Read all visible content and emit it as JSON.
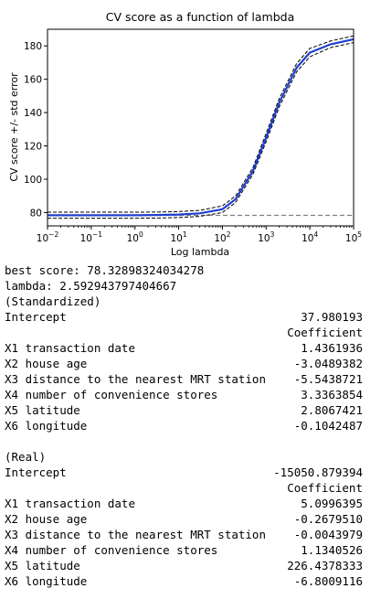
{
  "chart_data": {
    "type": "line",
    "title": "CV score as a function of lambda",
    "xlabel": "Log lambda",
    "ylabel": "CV score +/- std error",
    "xscale": "log",
    "xlim": [
      0.01,
      100000
    ],
    "ylim": [
      72,
      190
    ],
    "xticks": [
      {
        "value": 0.01,
        "base": "10",
        "exp": "−2"
      },
      {
        "value": 0.1,
        "base": "10",
        "exp": "−1"
      },
      {
        "value": 1,
        "base": "10",
        "exp": "0"
      },
      {
        "value": 10,
        "base": "10",
        "exp": "1"
      },
      {
        "value": 100,
        "base": "10",
        "exp": "2"
      },
      {
        "value": 1000,
        "base": "10",
        "exp": "3"
      },
      {
        "value": 10000,
        "base": "10",
        "exp": "4"
      },
      {
        "value": 100000,
        "base": "10",
        "exp": "5"
      }
    ],
    "yticks": [
      {
        "value": 80,
        "label": "80"
      },
      {
        "value": 100,
        "label": "100"
      },
      {
        "value": 120,
        "label": "120"
      },
      {
        "value": 140,
        "label": "140"
      },
      {
        "value": 160,
        "label": "160"
      },
      {
        "value": 180,
        "label": "180"
      }
    ],
    "x": [
      0.01,
      0.1,
      1,
      3,
      10,
      30,
      100,
      200,
      500,
      1000,
      2000,
      5000,
      10000,
      30000,
      100000
    ],
    "series": [
      {
        "values": [
          78.4,
          78.4,
          78.4,
          78.5,
          78.8,
          79.5,
          82,
          88,
          105,
          125,
          146,
          167,
          176,
          181,
          184
        ],
        "color": "#1f3fcf",
        "style": "solid",
        "width": 2.2
      },
      {
        "values": [
          80.2,
          80.2,
          80.2,
          80.3,
          80.6,
          81.3,
          84,
          90,
          107,
          127.5,
          148.5,
          169.5,
          178.5,
          183,
          186
        ],
        "color": "#000000",
        "style": "dashed",
        "width": 1
      },
      {
        "values": [
          76.6,
          76.6,
          76.6,
          76.7,
          77,
          77.7,
          80,
          86,
          103,
          122.5,
          143.5,
          164.5,
          173.5,
          179,
          182
        ],
        "color": "#000000",
        "style": "dashed",
        "width": 1
      }
    ],
    "hline": {
      "value": 78.33,
      "color": "#808080",
      "style": "dashed"
    }
  },
  "output": {
    "best_score": "best score: 78.32898324034278",
    "lambda": "lambda: 2.592943797404667",
    "standardized": {
      "header": "(Standardized)",
      "intercept_label": "Intercept",
      "intercept_value": "37.980193",
      "coef_header": "Coefficient",
      "rows": [
        {
          "label": "X1 transaction date",
          "value": "1.4361936"
        },
        {
          "label": "X2 house age",
          "value": "-3.0489382"
        },
        {
          "label": "X3 distance to the nearest MRT station",
          "value": "-5.5438721"
        },
        {
          "label": "X4 number of convenience stores",
          "value": "3.3363854"
        },
        {
          "label": "X5 latitude",
          "value": "2.8067421"
        },
        {
          "label": "X6 longitude",
          "value": "-0.1042487"
        }
      ]
    },
    "real": {
      "header": "(Real)",
      "intercept_label": "Intercept",
      "intercept_value": "-15050.879394",
      "coef_header": "Coefficient",
      "rows": [
        {
          "label": "X1 transaction date",
          "value": "5.0996395"
        },
        {
          "label": "X2 house age",
          "value": "-0.2679510"
        },
        {
          "label": "X3 distance to the nearest MRT station",
          "value": "-0.0043979"
        },
        {
          "label": "X4 number of convenience stores",
          "value": "1.1340526"
        },
        {
          "label": "X5 latitude",
          "value": "226.4378333"
        },
        {
          "label": "X6 longitude",
          "value": "-6.8009116"
        }
      ]
    }
  }
}
